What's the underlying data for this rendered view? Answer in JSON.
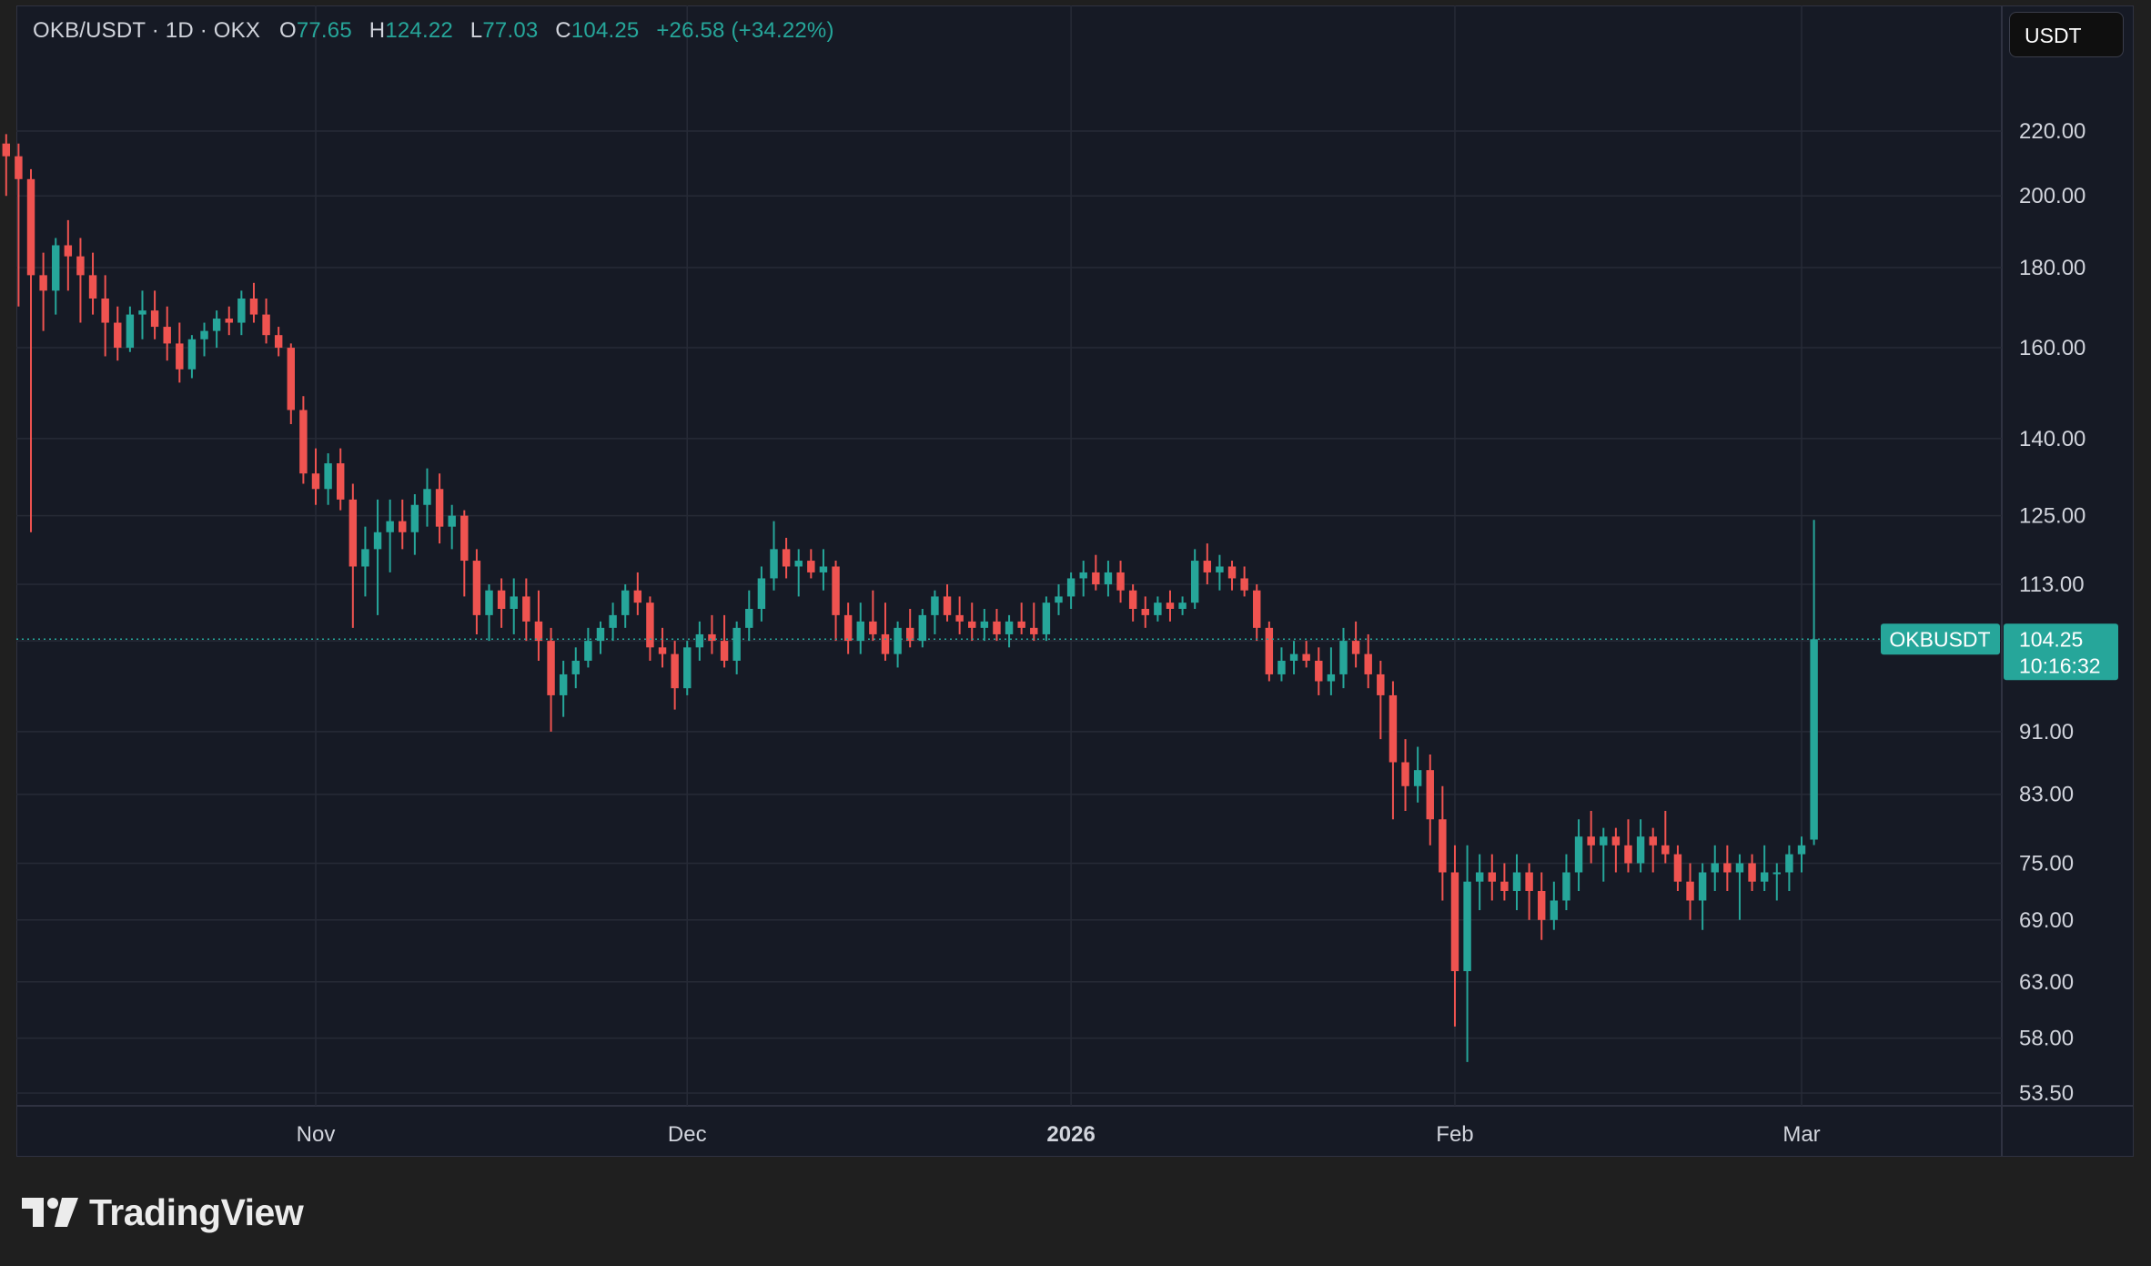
{
  "header": {
    "symbol_label": "OKB/USDT · 1D · OKX",
    "o_label": "O",
    "o_value": "77.65",
    "h_label": "H",
    "h_value": "124.22",
    "l_label": "L",
    "l_value": "77.03",
    "c_label": "C",
    "c_value": "104.25",
    "change": "+26.58 (+34.22%)"
  },
  "currency_button": "USDT",
  "price_tag": {
    "symbol": "OKBUSDT",
    "price": "104.25",
    "countdown": "10:16:32"
  },
  "branding": {
    "name": "TradingView"
  },
  "colors": {
    "up": "#26a69a",
    "down": "#ef5350",
    "background": "#161a25",
    "grid": "#262a36",
    "axis_text": "#d1d4dc"
  },
  "chart_data": {
    "type": "candlestick",
    "title": "OKB/USDT · 1D · OKX",
    "y_scale": "log",
    "ylim": [
      53.5,
      228
    ],
    "y_ticks": [
      220,
      200,
      180,
      160,
      140,
      125,
      113,
      104,
      91,
      83,
      75,
      69,
      63,
      58,
      53.5
    ],
    "y_tick_labels": [
      "220.00",
      "200.00",
      "180.00",
      "160.00",
      "140.00",
      "125.00",
      "113.00",
      "",
      "91.00",
      "83.00",
      "75.00",
      "69.00",
      "63.00",
      "58.00",
      "53.50"
    ],
    "x_ticks": [
      "2025-11-01",
      "2025-12-01",
      "2026-01-01",
      "2026-02-01",
      "2026-03-01"
    ],
    "x_tick_labels": [
      "Nov",
      "Dec",
      "2026",
      "Feb",
      "Mar"
    ],
    "start_date": "2025-10-07",
    "last_price": 104.25,
    "candles": [
      [
        216,
        219,
        200,
        212
      ],
      [
        212,
        216,
        170,
        205
      ],
      [
        205,
        208,
        122,
        178
      ],
      [
        178,
        184,
        164,
        174
      ],
      [
        174,
        188,
        168,
        186
      ],
      [
        186,
        193,
        174,
        183
      ],
      [
        183,
        188,
        166,
        178
      ],
      [
        178,
        184,
        168,
        172
      ],
      [
        172,
        178,
        158,
        166
      ],
      [
        166,
        170,
        157,
        160
      ],
      [
        160,
        170,
        159,
        168
      ],
      [
        168,
        174,
        162,
        169
      ],
      [
        169,
        174,
        162,
        165
      ],
      [
        165,
        170,
        157,
        161
      ],
      [
        161,
        166,
        152,
        155
      ],
      [
        155,
        163,
        153,
        162
      ],
      [
        162,
        166,
        158,
        164
      ],
      [
        164,
        169,
        160,
        167
      ],
      [
        167,
        170,
        163,
        166
      ],
      [
        166,
        174,
        163,
        172
      ],
      [
        172,
        176,
        166,
        168
      ],
      [
        168,
        172,
        161,
        163
      ],
      [
        163,
        165,
        158,
        160
      ],
      [
        160,
        161,
        143,
        146
      ],
      [
        146,
        149,
        131,
        133
      ],
      [
        133,
        138,
        127,
        130
      ],
      [
        130,
        137,
        127,
        135
      ],
      [
        135,
        138,
        126,
        128
      ],
      [
        128,
        131,
        106,
        116
      ],
      [
        116,
        123,
        111,
        119
      ],
      [
        119,
        128,
        108,
        122
      ],
      [
        122,
        128,
        115,
        124
      ],
      [
        124,
        128,
        119,
        122
      ],
      [
        122,
        129,
        118,
        127
      ],
      [
        127,
        134,
        123,
        130
      ],
      [
        130,
        133,
        120,
        123
      ],
      [
        123,
        127,
        119,
        125
      ],
      [
        125,
        126,
        111,
        117
      ],
      [
        117,
        119,
        105,
        108
      ],
      [
        108,
        113,
        104,
        112
      ],
      [
        112,
        114,
        106,
        109
      ],
      [
        109,
        114,
        105,
        111
      ],
      [
        111,
        114,
        104,
        107
      ],
      [
        107,
        112,
        101,
        104
      ],
      [
        104,
        106,
        91,
        96
      ],
      [
        96,
        101,
        93,
        99
      ],
      [
        99,
        103,
        97,
        101
      ],
      [
        101,
        106,
        100,
        104
      ],
      [
        104,
        107,
        102,
        106
      ],
      [
        106,
        110,
        104,
        108
      ],
      [
        108,
        113,
        106,
        112
      ],
      [
        112,
        115,
        108,
        110
      ],
      [
        110,
        111,
        101,
        103
      ],
      [
        103,
        106,
        100,
        102
      ],
      [
        102,
        104,
        94,
        97
      ],
      [
        97,
        104,
        96,
        103
      ],
      [
        103,
        107,
        101,
        105
      ],
      [
        105,
        108,
        102,
        104
      ],
      [
        104,
        108,
        100,
        101
      ],
      [
        101,
        107,
        99,
        106
      ],
      [
        106,
        112,
        104,
        109
      ],
      [
        109,
        116,
        107,
        114
      ],
      [
        114,
        124,
        112,
        119
      ],
      [
        119,
        121,
        114,
        116
      ],
      [
        116,
        119,
        111,
        117
      ],
      [
        117,
        119,
        114,
        115
      ],
      [
        115,
        119,
        112,
        116
      ],
      [
        116,
        117,
        104,
        108
      ],
      [
        108,
        110,
        102,
        104
      ],
      [
        104,
        110,
        102,
        107
      ],
      [
        107,
        112,
        104,
        105
      ],
      [
        105,
        110,
        101,
        102
      ],
      [
        102,
        107,
        100,
        106
      ],
      [
        106,
        109,
        103,
        104
      ],
      [
        104,
        109,
        103,
        108
      ],
      [
        108,
        112,
        105,
        111
      ],
      [
        111,
        113,
        107,
        108
      ],
      [
        108,
        111,
        105,
        107
      ],
      [
        107,
        110,
        104,
        106
      ],
      [
        106,
        109,
        104,
        107
      ],
      [
        107,
        109,
        104,
        105
      ],
      [
        105,
        108,
        103,
        107
      ],
      [
        107,
        110,
        105,
        106
      ],
      [
        106,
        110,
        104,
        105
      ],
      [
        105,
        111,
        104,
        110
      ],
      [
        110,
        113,
        108,
        111
      ],
      [
        111,
        115,
        109,
        114
      ],
      [
        114,
        117,
        111,
        115
      ],
      [
        115,
        118,
        112,
        113
      ],
      [
        113,
        117,
        111,
        115
      ],
      [
        115,
        117,
        110,
        112
      ],
      [
        112,
        113,
        107,
        109
      ],
      [
        109,
        111,
        106,
        108
      ],
      [
        108,
        111,
        107,
        110
      ],
      [
        110,
        112,
        107,
        109
      ],
      [
        109,
        111,
        108,
        110
      ],
      [
        110,
        119,
        109,
        117
      ],
      [
        117,
        120,
        113,
        115
      ],
      [
        115,
        118,
        112,
        116
      ],
      [
        116,
        117,
        112,
        114
      ],
      [
        114,
        116,
        111,
        112
      ],
      [
        112,
        113,
        104,
        106
      ],
      [
        106,
        107,
        98,
        99
      ],
      [
        99,
        103,
        98,
        101
      ],
      [
        101,
        104,
        99,
        102
      ],
      [
        102,
        104,
        100,
        101
      ],
      [
        101,
        103,
        96,
        98
      ],
      [
        98,
        103,
        96,
        99
      ],
      [
        99,
        106,
        97,
        104
      ],
      [
        104,
        107,
        100,
        102
      ],
      [
        102,
        105,
        97,
        99
      ],
      [
        99,
        101,
        90,
        96
      ],
      [
        96,
        98,
        80,
        87
      ],
      [
        87,
        90,
        81,
        84
      ],
      [
        84,
        89,
        82,
        86
      ],
      [
        86,
        88,
        77,
        80
      ],
      [
        80,
        84,
        71,
        74
      ],
      [
        74,
        77,
        59,
        64
      ],
      [
        64,
        77,
        56,
        73
      ],
      [
        73,
        76,
        70,
        74
      ],
      [
        74,
        76,
        71,
        73
      ],
      [
        73,
        75,
        71,
        72
      ],
      [
        72,
        76,
        70,
        74
      ],
      [
        74,
        75,
        69,
        72
      ],
      [
        72,
        74,
        67,
        69
      ],
      [
        69,
        73,
        68,
        71
      ],
      [
        71,
        76,
        70,
        74
      ],
      [
        74,
        80,
        72,
        78
      ],
      [
        78,
        81,
        75,
        77
      ],
      [
        77,
        79,
        73,
        78
      ],
      [
        78,
        79,
        74,
        77
      ],
      [
        77,
        80,
        74,
        75
      ],
      [
        75,
        80,
        74,
        78
      ],
      [
        78,
        79,
        74,
        77
      ],
      [
        77,
        81,
        75,
        76
      ],
      [
        76,
        77,
        72,
        73
      ],
      [
        73,
        75,
        69,
        71
      ],
      [
        71,
        75,
        68,
        74
      ],
      [
        74,
        77,
        72,
        75
      ],
      [
        75,
        77,
        72,
        74
      ],
      [
        74,
        76,
        69,
        75
      ],
      [
        75,
        76,
        72,
        73
      ],
      [
        73,
        77,
        72,
        74
      ],
      [
        74,
        75,
        71,
        74
      ],
      [
        74,
        77,
        72,
        76
      ],
      [
        76,
        78,
        74,
        77
      ],
      [
        77.65,
        124.22,
        77.03,
        104.25
      ]
    ]
  }
}
